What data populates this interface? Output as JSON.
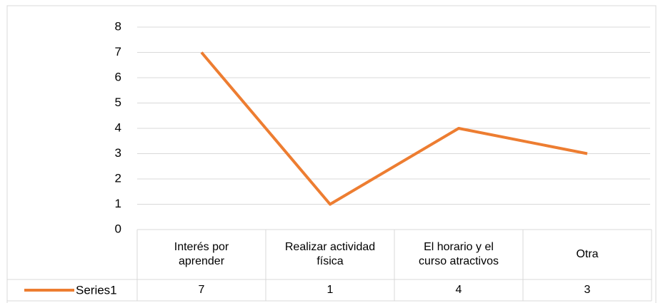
{
  "chart_data": {
    "type": "line",
    "categories": [
      "Interés por aprender",
      "Realizar actividad física",
      "El horario y el curso atractivos",
      "Otra"
    ],
    "series": [
      {
        "name": "Series1",
        "color": "#ed7d31",
        "values": [
          7,
          1,
          4,
          3
        ]
      }
    ],
    "ylim": [
      0,
      8
    ],
    "yticks": [
      0,
      1,
      2,
      3,
      4,
      5,
      6,
      7,
      8
    ],
    "grid": true
  }
}
